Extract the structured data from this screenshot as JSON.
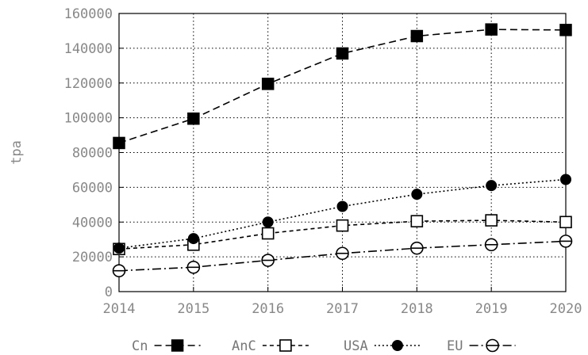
{
  "chart_data": {
    "type": "line",
    "title": "",
    "xlabel": "",
    "ylabel": "tpa",
    "x": [
      2014,
      2015,
      2016,
      2017,
      2018,
      2019,
      2020
    ],
    "xlim": [
      2014,
      2020
    ],
    "ylim": [
      0,
      160000
    ],
    "yticks": [
      0,
      20000,
      40000,
      60000,
      80000,
      100000,
      120000,
      140000,
      160000
    ],
    "grid": true,
    "legend": "bottom",
    "series": [
      {
        "name": "Cn",
        "marker": "square-filled",
        "dash": "dashed",
        "values": [
          85500,
          99500,
          119500,
          137000,
          147000,
          150800,
          150500
        ]
      },
      {
        "name": "AnC",
        "marker": "square-open",
        "dash": "short-dashed",
        "values": [
          24500,
          27000,
          33500,
          38000,
          40500,
          41000,
          40000
        ]
      },
      {
        "name": "USA",
        "marker": "circle-filled",
        "dash": "dotted",
        "values": [
          25000,
          30500,
          40000,
          49000,
          56000,
          61000,
          64500
        ]
      },
      {
        "name": "EU",
        "marker": "circle-open",
        "dash": "dash-dot",
        "values": [
          12000,
          14000,
          18000,
          22000,
          25000,
          27000,
          29000
        ]
      }
    ]
  }
}
